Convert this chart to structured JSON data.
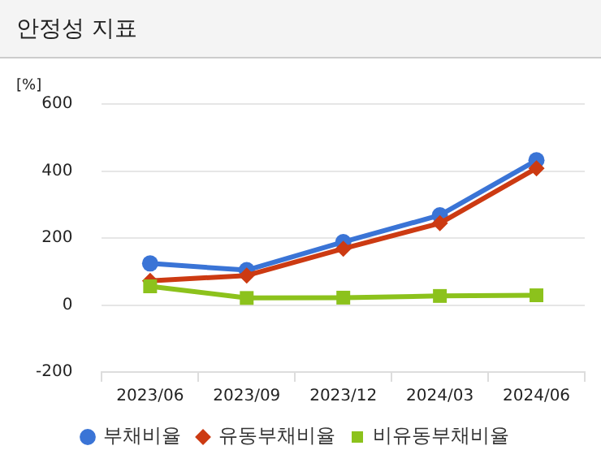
{
  "chart_data": {
    "type": "line",
    "title": "안정성 지표",
    "ylabel": "[%]",
    "categories": [
      "2023/06",
      "2023/09",
      "2023/12",
      "2024/03",
      "2024/06"
    ],
    "series": [
      {
        "name": "부채비율",
        "color": "#3a74d6",
        "marker": "circle",
        "values": [
          124,
          104,
          188,
          268,
          432
        ]
      },
      {
        "name": "유동부채비율",
        "color": "#cc3a12",
        "marker": "diamond",
        "values": [
          72,
          88,
          168,
          244,
          408
        ]
      },
      {
        "name": "비유동부채비율",
        "color": "#8cc21c",
        "marker": "square",
        "values": [
          56,
          21,
          22,
          27,
          29
        ]
      }
    ],
    "ylim": [
      -200,
      600
    ],
    "yticks": [
      -200,
      0,
      200,
      400,
      600
    ],
    "grid": "y",
    "legend": "bottom",
    "line_style": "solid"
  }
}
